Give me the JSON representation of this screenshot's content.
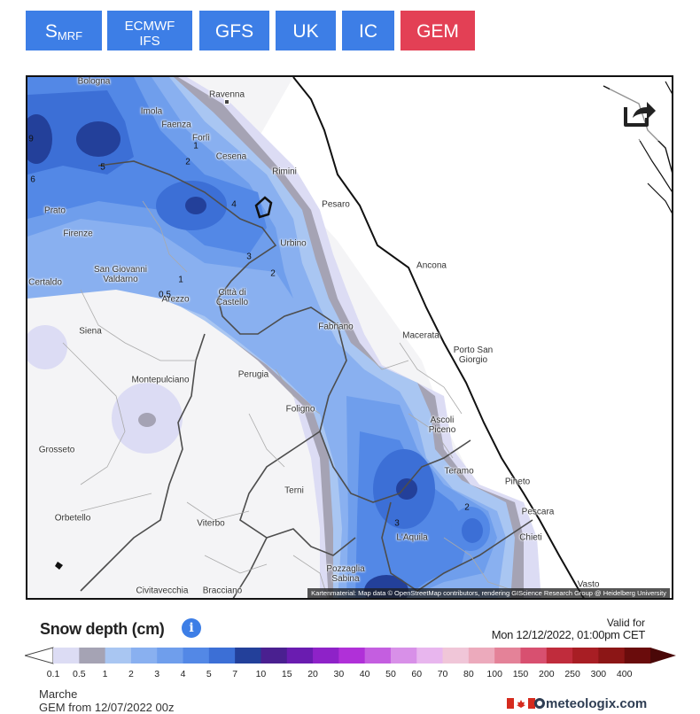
{
  "tabs": [
    {
      "label": "S",
      "sub": "MRF",
      "active": false
    },
    {
      "label": "ECMWF\nIFS",
      "active": false
    },
    {
      "label": "GFS",
      "active": false
    },
    {
      "label": "UK",
      "active": false
    },
    {
      "label": "IC",
      "active": false
    },
    {
      "label": "GEM",
      "active": true
    }
  ],
  "map": {
    "cities": [
      {
        "name": "Bologna"
      },
      {
        "name": "Imola"
      },
      {
        "name": "Ravenna"
      },
      {
        "name": "Faenza"
      },
      {
        "name": "Forlì"
      },
      {
        "name": "Cesena"
      },
      {
        "name": "Rimini"
      },
      {
        "name": "Pesaro"
      },
      {
        "name": "Prato"
      },
      {
        "name": "Firenze"
      },
      {
        "name": "Urbino"
      },
      {
        "name": "San Giovanni Valdarno"
      },
      {
        "name": "Certaldo"
      },
      {
        "name": "Arezzo"
      },
      {
        "name": "Città di Castello"
      },
      {
        "name": "Ancona"
      },
      {
        "name": "Siena"
      },
      {
        "name": "Fabriano"
      },
      {
        "name": "Macerata"
      },
      {
        "name": "Porto San Giorgio"
      },
      {
        "name": "Montepulciano"
      },
      {
        "name": "Perugia"
      },
      {
        "name": "Foligno"
      },
      {
        "name": "Ascoli Piceno"
      },
      {
        "name": "Grosseto"
      },
      {
        "name": "Teramo"
      },
      {
        "name": "Terni"
      },
      {
        "name": "Pineto"
      },
      {
        "name": "Pescara"
      },
      {
        "name": "Orbetello"
      },
      {
        "name": "Viterbo"
      },
      {
        "name": "L'Aquila"
      },
      {
        "name": "Chieti"
      },
      {
        "name": "Pozzaglia Sabina"
      },
      {
        "name": "Civitavecchia"
      },
      {
        "name": "Bracciano"
      },
      {
        "name": "Vasto"
      }
    ],
    "contour_labels": [
      "5",
      "2",
      "1",
      "4",
      "3",
      "2",
      "1",
      "0.5",
      "2",
      "3",
      "6",
      "9"
    ],
    "attribution": "Kartenmaterial: Map data © OpenStreetMap contributors, rendering GIScience Research Group @ Heidelberg University",
    "share_icon": "share-icon"
  },
  "legend": {
    "title": "Snow depth (cm)",
    "info_icon": "info-icon",
    "valid_label": "Valid for",
    "valid_date": "Mon 12/12/2022, 01:00pm CET",
    "ticks": [
      "0.1",
      "0.5",
      "1",
      "2",
      "3",
      "4",
      "5",
      "7",
      "10",
      "15",
      "20",
      "30",
      "40",
      "50",
      "60",
      "70",
      "80",
      "100",
      "150",
      "200",
      "250",
      "300",
      "400"
    ],
    "colors": [
      "#dcdcf4",
      "#a5a3b4",
      "#a9c6f2",
      "#89b0f0",
      "#6f9eec",
      "#5388e6",
      "#3c6fd6",
      "#23409a",
      "#4a2090",
      "#6a1cb0",
      "#8e22c8",
      "#b030d8",
      "#c45ee0",
      "#d890e8",
      "#e8b6ee",
      "#f0c6d8",
      "#ecaabc",
      "#e48298",
      "#d85070",
      "#c02c3c",
      "#a81e24",
      "#8c1616",
      "#6a0c0c"
    ],
    "region": "Marche",
    "run": "GEM from 12/07/2022 00z",
    "brand": "meteologix.com"
  }
}
